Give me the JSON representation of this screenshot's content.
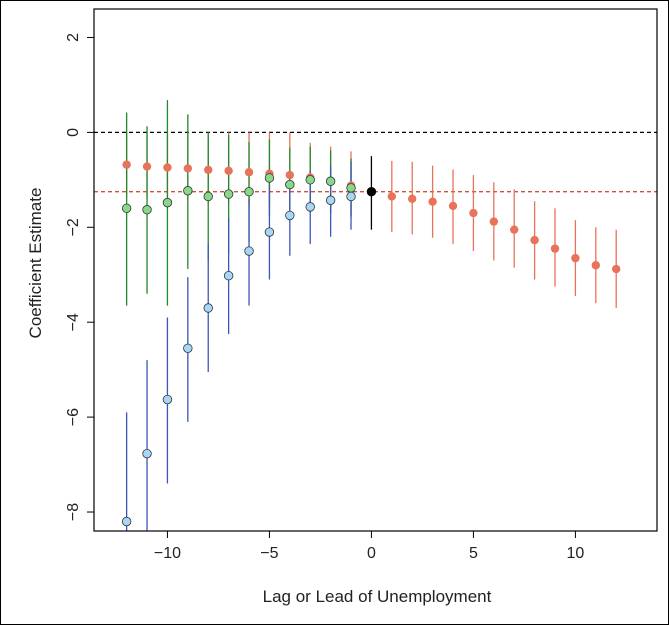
{
  "chart_data": {
    "type": "scatter",
    "title": "",
    "xlabel": "Lag or Lead of Unemployment",
    "ylabel": "Coefficient Estimate",
    "xlim": [
      -13.6,
      14.0
    ],
    "ylim": [
      -8.4,
      2.6
    ],
    "xticks": [
      -10,
      -5,
      0,
      5,
      10
    ],
    "xtick_labels": [
      "−10",
      "−5",
      "0",
      "5",
      "10"
    ],
    "yticks": [
      2,
      0,
      -2,
      -4,
      -6,
      -8
    ],
    "ytick_labels": [
      "2",
      "0",
      "−2",
      "−4",
      "−6",
      "−8"
    ],
    "grid": false,
    "legend": "none",
    "reference_lines": [
      {
        "y": 0,
        "color": "#000000",
        "style": "dashed"
      },
      {
        "y": -1.25,
        "color": "#c8553f",
        "style": "dashed"
      }
    ],
    "series": [
      {
        "color": "#e8735a",
        "line_color": "#e8735a",
        "points": [
          {
            "x": -12,
            "y": -0.68,
            "lo": -1.35,
            "hi": 0.0
          },
          {
            "x": -11,
            "y": -0.72,
            "lo": -1.4,
            "hi": 0.0
          },
          {
            "x": -10,
            "y": -0.74,
            "lo": -1.42,
            "hi": 0.0
          },
          {
            "x": -9,
            "y": -0.76,
            "lo": -1.45,
            "hi": 0.0
          },
          {
            "x": -8,
            "y": -0.79,
            "lo": -1.48,
            "hi": 0.0
          },
          {
            "x": -7,
            "y": -0.81,
            "lo": -1.5,
            "hi": 0.0
          },
          {
            "x": -6,
            "y": -0.84,
            "lo": -1.52,
            "hi": 0.0
          },
          {
            "x": -5,
            "y": -0.87,
            "lo": -1.55,
            "hi": 0.0
          },
          {
            "x": -4,
            "y": -0.9,
            "lo": -1.58,
            "hi": 0.0
          },
          {
            "x": -3,
            "y": -0.95,
            "lo": -1.65,
            "hi": -0.22
          },
          {
            "x": -2,
            "y": -1.02,
            "lo": -1.72,
            "hi": -0.3
          },
          {
            "x": -1,
            "y": -1.12,
            "lo": -1.8,
            "hi": -0.4
          },
          {
            "x": 1,
            "y": -1.35,
            "lo": -2.1,
            "hi": -0.6
          },
          {
            "x": 2,
            "y": -1.4,
            "lo": -2.15,
            "hi": -0.62
          },
          {
            "x": 3,
            "y": -1.46,
            "lo": -2.22,
            "hi": -0.7
          },
          {
            "x": 4,
            "y": -1.55,
            "lo": -2.35,
            "hi": -0.78
          },
          {
            "x": 5,
            "y": -1.7,
            "lo": -2.5,
            "hi": -0.9
          },
          {
            "x": 6,
            "y": -1.88,
            "lo": -2.7,
            "hi": -1.05
          },
          {
            "x": 7,
            "y": -2.05,
            "lo": -2.85,
            "hi": -1.2
          },
          {
            "x": 8,
            "y": -2.27,
            "lo": -3.1,
            "hi": -1.45
          },
          {
            "x": 9,
            "y": -2.45,
            "lo": -3.25,
            "hi": -1.6
          },
          {
            "x": 10,
            "y": -2.65,
            "lo": -3.45,
            "hi": -1.85
          },
          {
            "x": 11,
            "y": -2.8,
            "lo": -3.6,
            "hi": -2.0
          },
          {
            "x": 12,
            "y": -2.88,
            "lo": -3.7,
            "hi": -2.05
          }
        ]
      },
      {
        "color": "#88d88a",
        "line_color": "#1f8a2e",
        "points": [
          {
            "x": -12,
            "y": -1.6,
            "lo": -3.65,
            "hi": 0.42
          },
          {
            "x": -11,
            "y": -1.63,
            "lo": -3.4,
            "hi": 0.13
          },
          {
            "x": -10,
            "y": -1.48,
            "lo": -3.65,
            "hi": 0.68
          },
          {
            "x": -9,
            "y": -1.23,
            "lo": -2.88,
            "hi": 0.38
          },
          {
            "x": -8,
            "y": -1.35,
            "lo": -2.7,
            "hi": 0.0
          },
          {
            "x": -7,
            "y": -1.3,
            "lo": -2.55,
            "hi": -0.05
          },
          {
            "x": -6,
            "y": -1.25,
            "lo": -2.3,
            "hi": -0.2
          },
          {
            "x": -5,
            "y": -0.96,
            "lo": -1.75,
            "hi": -0.15
          },
          {
            "x": -4,
            "y": -1.1,
            "lo": -1.85,
            "hi": -0.32
          },
          {
            "x": -3,
            "y": -1.0,
            "lo": -1.65,
            "hi": -0.3
          },
          {
            "x": -2,
            "y": -1.03,
            "lo": -1.72,
            "hi": -0.38
          },
          {
            "x": -1,
            "y": -1.17,
            "lo": -1.75,
            "hi": -0.55
          }
        ]
      },
      {
        "color": "#a6d8f5",
        "line_color": "#3b56b8",
        "points": [
          {
            "x": -12,
            "y": -8.2,
            "lo": -10.5,
            "hi": -5.9
          },
          {
            "x": -11,
            "y": -6.77,
            "lo": -8.75,
            "hi": -4.8
          },
          {
            "x": -10,
            "y": -5.63,
            "lo": -7.4,
            "hi": -3.9
          },
          {
            "x": -9,
            "y": -4.55,
            "lo": -6.1,
            "hi": -3.05
          },
          {
            "x": -8,
            "y": -3.7,
            "lo": -5.05,
            "hi": -2.35
          },
          {
            "x": -7,
            "y": -3.02,
            "lo": -4.25,
            "hi": -1.8
          },
          {
            "x": -6,
            "y": -2.5,
            "lo": -3.65,
            "hi": -1.4
          },
          {
            "x": -5,
            "y": -2.1,
            "lo": -3.1,
            "hi": -1.12
          },
          {
            "x": -4,
            "y": -1.75,
            "lo": -2.6,
            "hi": -0.95
          },
          {
            "x": -3,
            "y": -1.57,
            "lo": -2.35,
            "hi": -0.8
          },
          {
            "x": -2,
            "y": -1.43,
            "lo": -2.2,
            "hi": -0.7
          },
          {
            "x": -1,
            "y": -1.35,
            "lo": -2.05,
            "hi": -0.62
          }
        ]
      },
      {
        "color": "#000000",
        "line_color": "#000000",
        "points": [
          {
            "x": 0,
            "y": -1.25,
            "lo": -2.05,
            "hi": -0.5
          }
        ]
      }
    ]
  }
}
